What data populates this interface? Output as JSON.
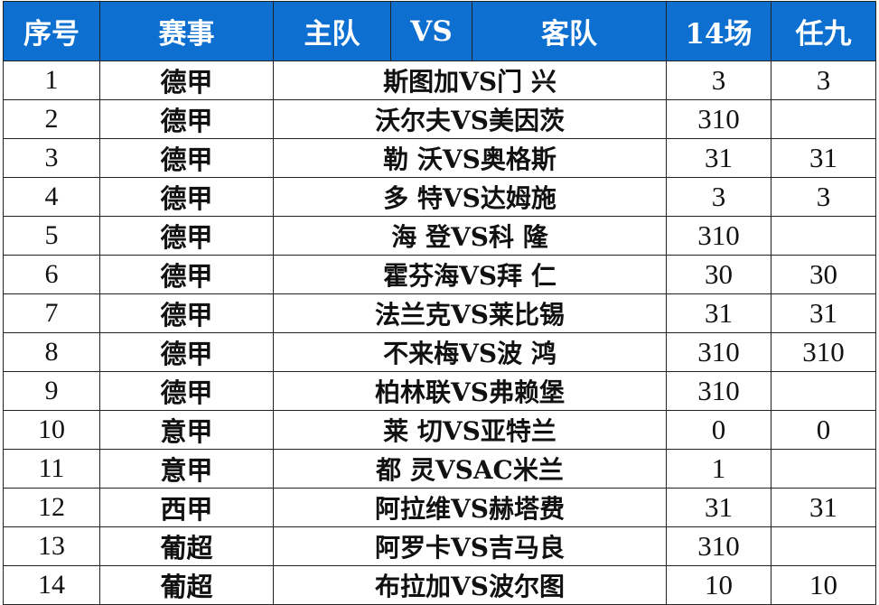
{
  "table": {
    "headers": {
      "index": "序号",
      "league": "赛事",
      "home": "主队",
      "vs": "VS",
      "away": "客队",
      "fourteen": "14场",
      "renjiu": "任九"
    },
    "header_color": "#0d6fd0",
    "rows": [
      {
        "index": "1",
        "league": "德甲",
        "match": "斯图加VS门 兴",
        "fourteen": "3",
        "renjiu": "3"
      },
      {
        "index": "2",
        "league": "德甲",
        "match": "沃尔夫VS美因茨",
        "fourteen": "310",
        "renjiu": ""
      },
      {
        "index": "3",
        "league": "德甲",
        "match": "勒 沃VS奥格斯",
        "fourteen": "31",
        "renjiu": "31"
      },
      {
        "index": "4",
        "league": "德甲",
        "match": "多 特VS达姆施",
        "fourteen": "3",
        "renjiu": "3"
      },
      {
        "index": "5",
        "league": "德甲",
        "match": "海 登VS科 隆",
        "fourteen": "310",
        "renjiu": ""
      },
      {
        "index": "6",
        "league": "德甲",
        "match": "霍芬海VS拜 仁",
        "fourteen": "30",
        "renjiu": "30"
      },
      {
        "index": "7",
        "league": "德甲",
        "match": "法兰克VS莱比锡",
        "fourteen": "31",
        "renjiu": "31"
      },
      {
        "index": "8",
        "league": "德甲",
        "match": "不来梅VS波 鸿",
        "fourteen": "310",
        "renjiu": "310"
      },
      {
        "index": "9",
        "league": "德甲",
        "match": "柏林联VS弗赖堡",
        "fourteen": "310",
        "renjiu": ""
      },
      {
        "index": "10",
        "league": "意甲",
        "match": "莱 切VS亚特兰",
        "fourteen": "0",
        "renjiu": "0"
      },
      {
        "index": "11",
        "league": "意甲",
        "match": "都 灵VSAC米兰",
        "fourteen": "1",
        "renjiu": ""
      },
      {
        "index": "12",
        "league": "西甲",
        "match": "阿拉维VS赫塔费",
        "fourteen": "31",
        "renjiu": "31"
      },
      {
        "index": "13",
        "league": "葡超",
        "match": "阿罗卡VS吉马良",
        "fourteen": "310",
        "renjiu": ""
      },
      {
        "index": "14",
        "league": "葡超",
        "match": "布拉加VS波尔图",
        "fourteen": "10",
        "renjiu": "10"
      }
    ]
  }
}
